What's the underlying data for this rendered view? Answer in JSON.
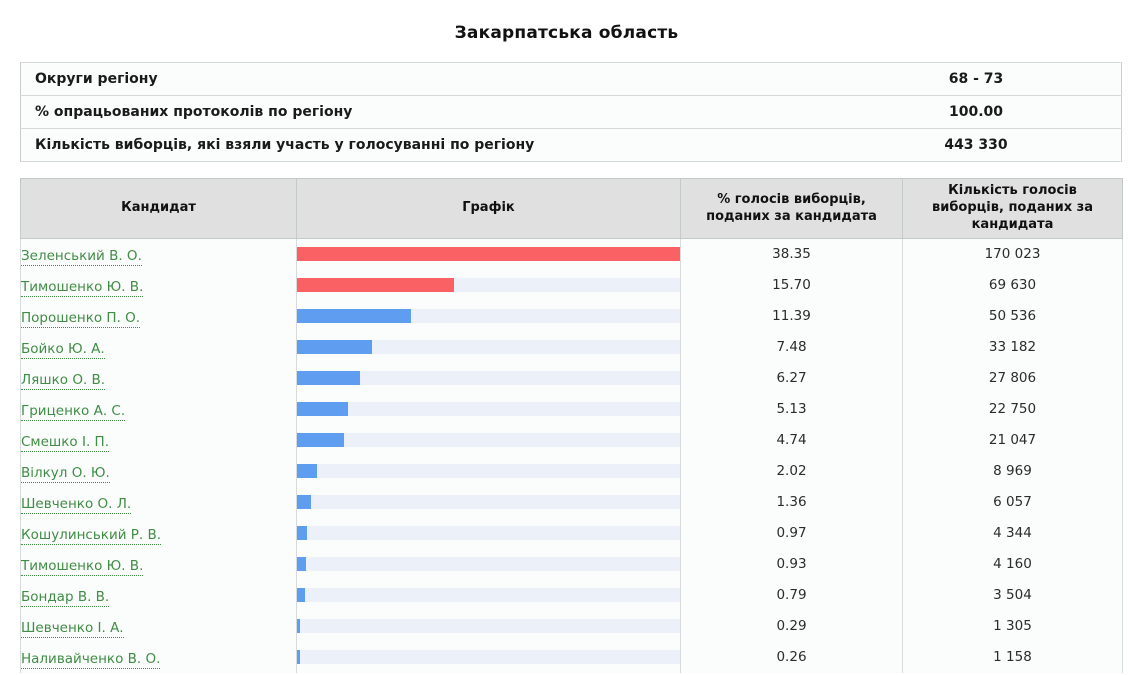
{
  "page": {
    "title": "Закарпатська область"
  },
  "summary": {
    "rows": [
      {
        "label": "Округи регіону",
        "value": "68 - 73"
      },
      {
        "label": "% опрацьованих протоколів по регіону",
        "value": "100.00"
      },
      {
        "label": "Кількість виборців, які взяли участь у голосуванні по регіону",
        "value": "443 330"
      }
    ]
  },
  "results_table": {
    "columns": [
      "Кандидат",
      "Графік",
      "% голосів виборців, поданих за кандидата",
      "Кількість голосів виборців, поданих за кандидата"
    ],
    "rows": [
      {
        "candidate": "Зеленський В. О.",
        "percent": "38.35",
        "votes": "170 023",
        "leader": true
      },
      {
        "candidate": "Тимошенко Ю. В.",
        "percent": "15.70",
        "votes": "69 630",
        "leader": true
      },
      {
        "candidate": "Порошенко П. О.",
        "percent": "11.39",
        "votes": "50 536",
        "leader": false
      },
      {
        "candidate": "Бойко Ю. А.",
        "percent": "7.48",
        "votes": "33 182",
        "leader": false
      },
      {
        "candidate": "Ляшко О. В.",
        "percent": "6.27",
        "votes": "27 806",
        "leader": false
      },
      {
        "candidate": "Гриценко А. С.",
        "percent": "5.13",
        "votes": "22 750",
        "leader": false
      },
      {
        "candidate": "Смешко І. П.",
        "percent": "4.74",
        "votes": "21 047",
        "leader": false
      },
      {
        "candidate": "Вілкул О. Ю.",
        "percent": "2.02",
        "votes": "8 969",
        "leader": false
      },
      {
        "candidate": "Шевченко О. Л.",
        "percent": "1.36",
        "votes": "6 057",
        "leader": false
      },
      {
        "candidate": "Кошулинський Р. В.",
        "percent": "0.97",
        "votes": "4 344",
        "leader": false
      },
      {
        "candidate": "Тимошенко Ю. В.",
        "percent": "0.93",
        "votes": "4 160",
        "leader": false
      },
      {
        "candidate": "Бондар В. В.",
        "percent": "0.79",
        "votes": "3 504",
        "leader": false
      },
      {
        "candidate": "Шевченко І. А.",
        "percent": "0.29",
        "votes": "1 305",
        "leader": false
      },
      {
        "candidate": "Наливайченко В. О.",
        "percent": "0.26",
        "votes": "1 158",
        "leader": false
      }
    ]
  },
  "colors": {
    "leader_bar": "#fa6165",
    "bar": "#5f9df0",
    "track": "#ecf0f9",
    "link_green": "#3f8c44",
    "header_bg": "#e0e0e0"
  },
  "chart_data": {
    "type": "bar",
    "orientation": "horizontal",
    "categories": [
      "Зеленський В. О.",
      "Тимошенко Ю. В.",
      "Порошенко П. О.",
      "Бойко Ю. А.",
      "Ляшко О. В.",
      "Гриценко А. С.",
      "Смешко І. П.",
      "Вілкул О. Ю.",
      "Шевченко О. Л.",
      "Кошулинський Р. В.",
      "Тимошенко Ю. В.",
      "Бондар В. В.",
      "Шевченко І. А.",
      "Наливайченко В. О."
    ],
    "series": [
      {
        "name": "% голосів виборців, поданих за кандидата",
        "values": [
          38.35,
          15.7,
          11.39,
          7.48,
          6.27,
          5.13,
          4.74,
          2.02,
          1.36,
          0.97,
          0.93,
          0.79,
          0.29,
          0.26
        ]
      },
      {
        "name": "Кількість голосів виборців, поданих за кандидата",
        "values": [
          170023,
          69630,
          50536,
          33182,
          27806,
          22750,
          21047,
          8969,
          6057,
          4344,
          4160,
          3504,
          1305,
          1158
        ]
      }
    ],
    "title": "Закарпатська область",
    "xlabel": "",
    "ylabel": "",
    "bar_scale_max": 38.35,
    "grid": false,
    "legend": false
  }
}
